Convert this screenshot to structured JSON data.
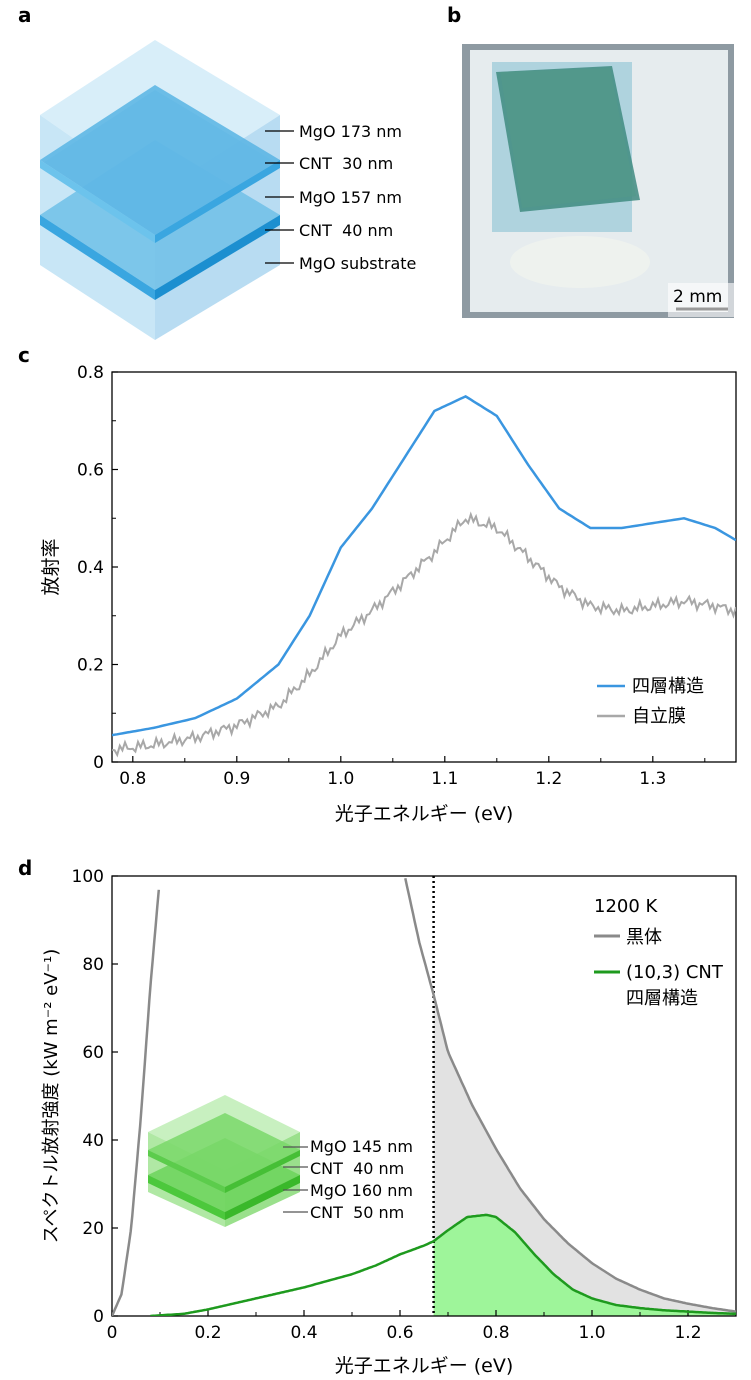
{
  "panels": {
    "a": "a",
    "b": "b",
    "c": "c",
    "d": "d"
  },
  "panel_a": {
    "layers": [
      "MgO 173 nm",
      "CNT  30 nm",
      "MgO 157 nm",
      "CNT  40 nm",
      "MgO substrate"
    ]
  },
  "panel_b": {
    "scale_bar_label": "2 mm"
  },
  "chart_data": [
    {
      "panel": "c",
      "type": "line",
      "xlabel": "光子エネルギー (eV)",
      "ylabel": "放射率",
      "xlim": [
        0.78,
        1.38
      ],
      "ylim": [
        0,
        0.8
      ],
      "xticks": [
        "0.8",
        "0.9",
        "1.0",
        "1.1",
        "1.2",
        "1.3"
      ],
      "yticks": [
        "0",
        "0.2",
        "0.4",
        "0.6",
        "0.8"
      ],
      "legend_position": "bottom-right",
      "series": [
        {
          "name": "四層構造",
          "color": "#3a96e0",
          "x": [
            0.78,
            0.82,
            0.86,
            0.9,
            0.94,
            0.97,
            1.0,
            1.03,
            1.06,
            1.09,
            1.12,
            1.15,
            1.18,
            1.21,
            1.24,
            1.27,
            1.3,
            1.33,
            1.36,
            1.38
          ],
          "y": [
            0.055,
            0.07,
            0.09,
            0.13,
            0.2,
            0.3,
            0.44,
            0.52,
            0.62,
            0.72,
            0.75,
            0.71,
            0.61,
            0.52,
            0.48,
            0.48,
            0.49,
            0.5,
            0.48,
            0.455
          ]
        },
        {
          "name": "自立膜",
          "color": "#a8a8a8",
          "x": [
            0.78,
            0.82,
            0.86,
            0.9,
            0.94,
            0.97,
            1.0,
            1.03,
            1.06,
            1.09,
            1.12,
            1.15,
            1.18,
            1.21,
            1.24,
            1.27,
            1.3,
            1.33,
            1.36,
            1.38
          ],
          "y": [
            0.025,
            0.035,
            0.05,
            0.075,
            0.115,
            0.18,
            0.26,
            0.31,
            0.37,
            0.43,
            0.5,
            0.48,
            0.42,
            0.36,
            0.32,
            0.31,
            0.32,
            0.33,
            0.32,
            0.31
          ]
        }
      ]
    },
    {
      "panel": "d",
      "type": "area",
      "xlabel": "光子エネルギー (eV)",
      "ylabel": "スペクトル放射強度 (kW m⁻² eV⁻¹)",
      "xlim": [
        0,
        1.3
      ],
      "ylim": [
        0,
        100
      ],
      "xticks": [
        "0",
        "0.2",
        "0.4",
        "0.6",
        "0.8",
        "1.0",
        "1.2"
      ],
      "yticks": [
        "0",
        "20",
        "40",
        "60",
        "80",
        "100"
      ],
      "cutoff_x": 0.67,
      "legend_title": "1200 K",
      "legend_position": "top-right",
      "series": [
        {
          "name": "黒体",
          "color": "#8a8a8a",
          "x": [
            0,
            0.02,
            0.04,
            0.06,
            0.08,
            0.1,
            0.61,
            0.64,
            0.67,
            0.7,
            0.75,
            0.8,
            0.85,
            0.9,
            0.95,
            1.0,
            1.05,
            1.1,
            1.15,
            1.2,
            1.25,
            1.3
          ],
          "y": [
            0,
            5,
            20,
            45,
            75,
            100,
            100,
            85,
            73,
            60,
            48,
            38,
            29,
            22,
            16.5,
            12,
            8.5,
            6,
            4,
            2.8,
            1.8,
            1.0
          ]
        },
        {
          "name": "(10,3) CNT\n四層構造",
          "color": "#1e9a1e",
          "x": [
            0.08,
            0.15,
            0.2,
            0.3,
            0.4,
            0.5,
            0.55,
            0.6,
            0.65,
            0.67,
            0.7,
            0.74,
            0.78,
            0.8,
            0.84,
            0.88,
            0.92,
            0.96,
            1.0,
            1.05,
            1.1,
            1.15,
            1.2,
            1.25,
            1.3
          ],
          "y": [
            0,
            0.5,
            1.5,
            4,
            6.5,
            9.5,
            11.5,
            14,
            16,
            17,
            19.5,
            22.5,
            23,
            22.5,
            19,
            14,
            9.5,
            6,
            4,
            2.5,
            1.8,
            1.3,
            1,
            0.7,
            0.5
          ]
        }
      ],
      "inset_layers": [
        "MgO 145 nm",
        "CNT  40 nm",
        "MgO 160 nm",
        "CNT  50 nm"
      ]
    }
  ]
}
